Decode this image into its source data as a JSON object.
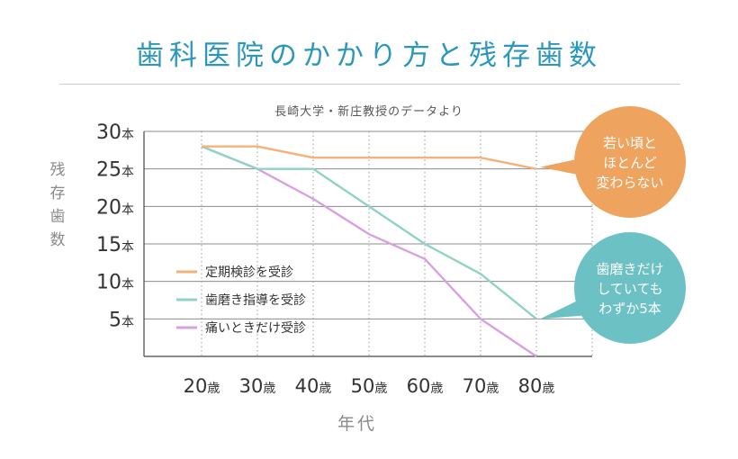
{
  "title": "歯科医院のかかり方と残存歯数",
  "subtitle": "長崎大学・新庄教授のデータより",
  "ylabel": "残存歯数",
  "xlabel": "年代",
  "colors": {
    "title": "#2a97bd",
    "orange": "#f3b279",
    "teal": "#8fd3c6",
    "purple": "#d9a0e0",
    "bubble_orange": "#eea45f",
    "bubble_teal": "#6cc1c4"
  },
  "chart_data": {
    "type": "line",
    "categories": [
      "20歳",
      "30歳",
      "40歳",
      "50歳",
      "60歳",
      "70歳",
      "80歳"
    ],
    "ylim": [
      0,
      30
    ],
    "yticks": [
      5,
      10,
      15,
      20,
      25,
      30
    ],
    "ytick_unit": "本",
    "grid": true,
    "legend_position": "bottom-left",
    "series": [
      {
        "name": "定期検診を受診",
        "color": "#f3b279",
        "values": [
          28,
          28,
          26.5,
          26.5,
          26.5,
          26.5,
          25
        ]
      },
      {
        "name": "歯磨き指導を受診",
        "color": "#8fd3c6",
        "values": [
          28,
          25,
          25,
          20,
          15,
          11,
          5
        ]
      },
      {
        "name": "痛いときだけ受診",
        "color": "#d9a0e0",
        "values": [
          28,
          25,
          21,
          16.3,
          13,
          5,
          0
        ]
      }
    ],
    "annotations": [
      {
        "text": "若い頃と\nほとんど\n変わらない",
        "target_series": "定期検診を受診"
      },
      {
        "text": "歯磨きだけ\nしていても\nわずか5本",
        "target_series": "歯磨き指導を受診"
      }
    ]
  }
}
